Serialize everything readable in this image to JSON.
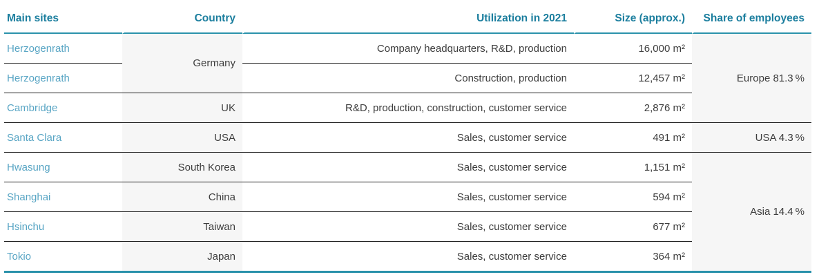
{
  "table": {
    "columns": [
      {
        "key": "site",
        "label": "Main sites"
      },
      {
        "key": "country",
        "label": "Country"
      },
      {
        "key": "utilization",
        "label": "Utilization in 2021"
      },
      {
        "key": "size",
        "label": "Size (approx.)"
      },
      {
        "key": "share",
        "label": "Share of employees"
      }
    ],
    "rows": [
      {
        "site": "Herzogenrath",
        "country": "Germany",
        "country_rowspan": 2,
        "utilization": "Company headquarters, R&D, production",
        "size": "16,000 m²",
        "share": "Europe 81.3 %",
        "share_rowspan": 3
      },
      {
        "site": "Herzogenrath",
        "utilization": "Construction, production",
        "size": "12,457 m²"
      },
      {
        "site": "Cambridge",
        "country": "UK",
        "utilization": "R&D, production, construction, customer service",
        "size": "2,876 m²"
      },
      {
        "site": "Santa Clara",
        "country": "USA",
        "utilization": "Sales, customer service",
        "size": "491 m²",
        "share": "USA 4.3 %"
      },
      {
        "site": "Hwasung",
        "country": "South Korea",
        "utilization": "Sales, customer service",
        "size": "1,151 m²",
        "share": "Asia 14.4 %",
        "share_rowspan": 4
      },
      {
        "site": "Shanghai",
        "country": "China",
        "utilization": "Sales, customer service",
        "size": "594 m²"
      },
      {
        "site": "Hsinchu",
        "country": "Taiwan",
        "utilization": "Sales, customer service",
        "size": "677 m²"
      },
      {
        "site": "Tokio",
        "country": "Japan",
        "utilization": "Sales, customer service",
        "size": "364 m²"
      }
    ]
  },
  "colors": {
    "header_text_teal": "#1b7e9e",
    "rule_teal": "#2a92ab",
    "site_name_teal": "#58a5c4",
    "body_text": "#3d3d3d",
    "row_divider": "#1e1e1e",
    "shaded_column_bg": "#f6f6f6"
  }
}
